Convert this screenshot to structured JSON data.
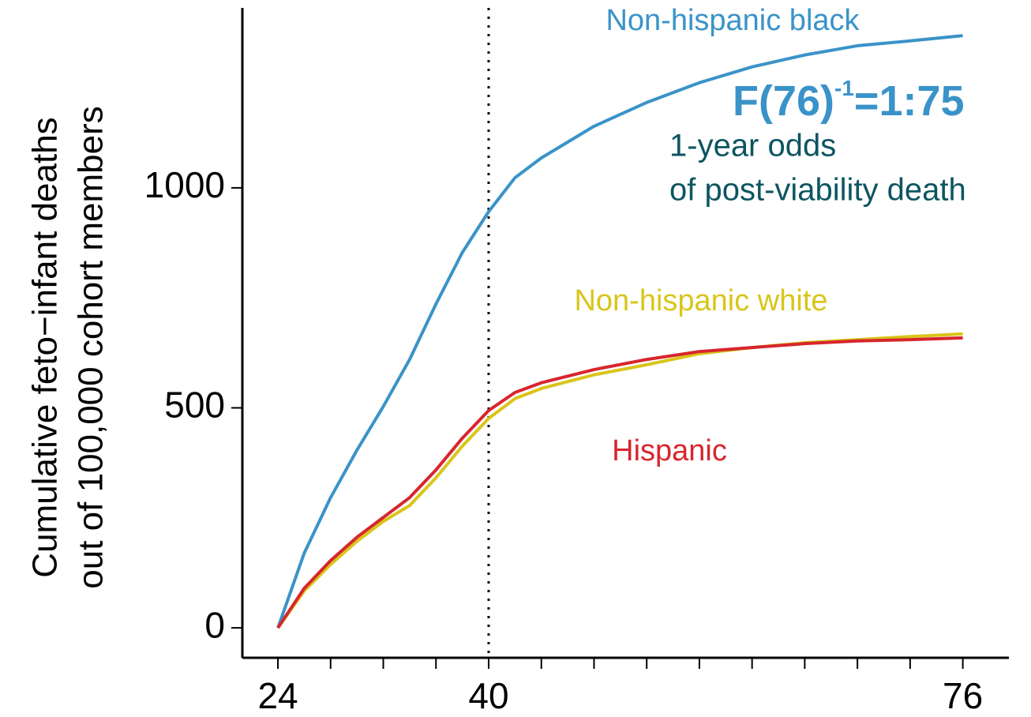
{
  "chart_data": {
    "type": "line",
    "y_label_lines": [
      "Cumulative feto−infant deaths",
      "out of 100,000 cohort members"
    ],
    "x": [
      24,
      26,
      28,
      30,
      32,
      34,
      36,
      38,
      40,
      42,
      44,
      48,
      52,
      56,
      60,
      64,
      68,
      72,
      76
    ],
    "series": [
      {
        "name": "Non-hispanic black",
        "color": "#3a93c8",
        "values": [
          0,
          170,
          296,
          404,
          503,
          610,
          736,
          853,
          946,
          1023,
          1068,
          1140,
          1194,
          1239,
          1275,
          1302,
          1323,
          1334,
          1346
        ]
      },
      {
        "name": "Non-hispanic white",
        "color": "#d9c51a",
        "values": [
          0,
          84,
          144,
          197,
          242,
          278,
          341,
          413,
          476,
          521,
          544,
          575,
          598,
          623,
          637,
          648,
          655,
          662,
          668
        ]
      },
      {
        "name": "Hispanic",
        "color": "#d7262d",
        "values": [
          0,
          90,
          153,
          206,
          251,
          296,
          359,
          431,
          494,
          535,
          557,
          587,
          610,
          628,
          637,
          646,
          652,
          655,
          659
        ]
      }
    ],
    "xlim": [
      21.3,
      79.5
    ],
    "ylim": [
      -68,
      1409
    ],
    "xticks": [
      24,
      40,
      76
    ],
    "x_minor_ticks": [
      28,
      32,
      36,
      44,
      48,
      52,
      56,
      60,
      64,
      68,
      72
    ],
    "yticks": [
      0,
      500,
      1000
    ],
    "vline": 40,
    "odds_annotation": {
      "base": "F(76)",
      "sup": "-1",
      "rest": "=1:75",
      "color": "#3a93c8"
    },
    "odds_caption": {
      "lines": [
        "1-year odds",
        "of post-viability death"
      ],
      "color": "#0d5560"
    }
  }
}
